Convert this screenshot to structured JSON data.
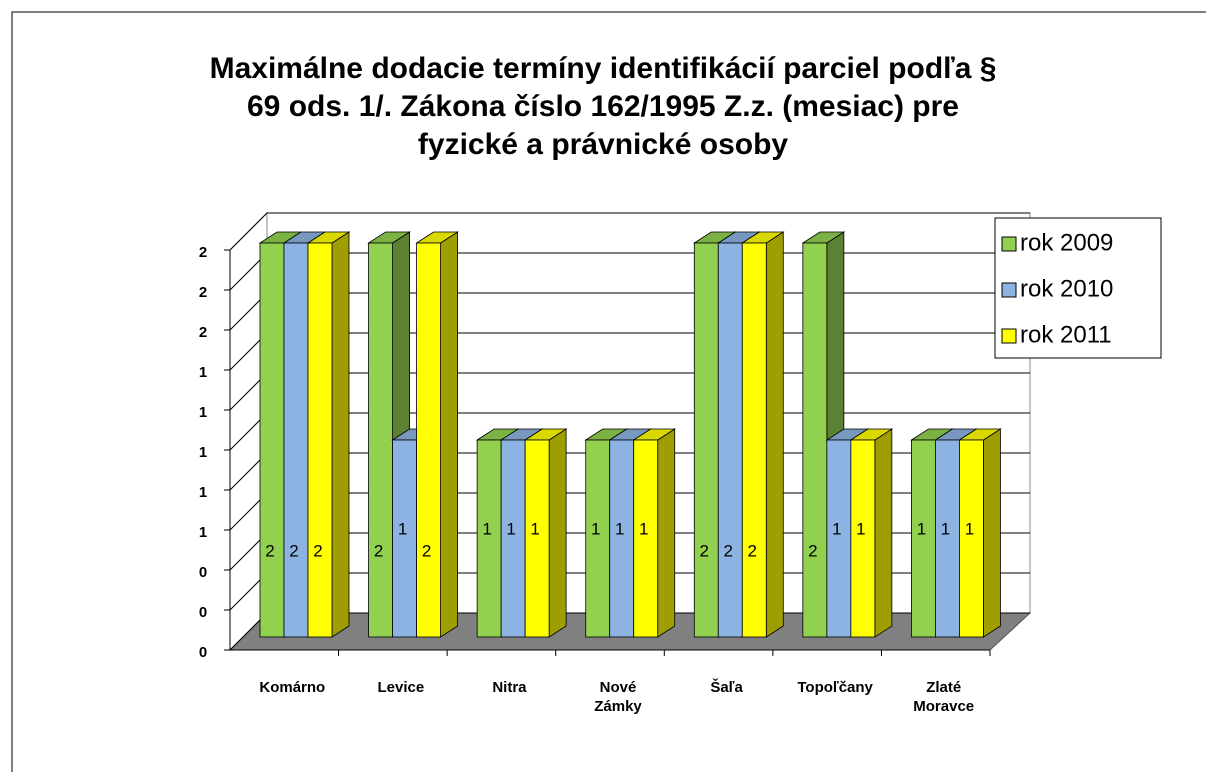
{
  "chart_data": {
    "type": "bar3d",
    "title": [
      "Maximálne dodacie termíny identifikácií parciel podľa §",
      "69 ods. 1/. Zákona číslo 162/1995 Z.z. (mesiac) pre",
      "fyzické a právnické osoby"
    ],
    "categories": [
      "Komárno",
      "Levice",
      "Nitra",
      "Nové Zámky",
      "Šaľa",
      "Topoľčany",
      "Zlaté Moravce"
    ],
    "series": [
      {
        "name": "rok 2009",
        "color": "#92d050",
        "values": [
          2,
          2,
          1,
          1,
          2,
          2,
          1
        ]
      },
      {
        "name": "rok 2010",
        "color": "#8db3e2",
        "values": [
          2,
          1,
          1,
          1,
          2,
          1,
          1
        ]
      },
      {
        "name": "rok 2011",
        "color": "#ffff00",
        "values": [
          2,
          2,
          1,
          1,
          2,
          1,
          1
        ]
      }
    ],
    "ylim": [
      0,
      2
    ],
    "yticks": [
      0,
      {
        "value": 0.2,
        "label": "0"
      },
      {
        "value": 0.4,
        "label": "0"
      },
      {
        "value": 0.6,
        "label": "1"
      },
      {
        "value": 0.8,
        "label": "1"
      },
      1,
      {
        "value": 1.2,
        "label": "1"
      },
      {
        "value": 1.4,
        "label": "1"
      },
      {
        "value": 1.6,
        "label": "2"
      },
      {
        "value": 1.8,
        "label": "2"
      },
      2
    ],
    "grid": true,
    "legend": "right"
  }
}
